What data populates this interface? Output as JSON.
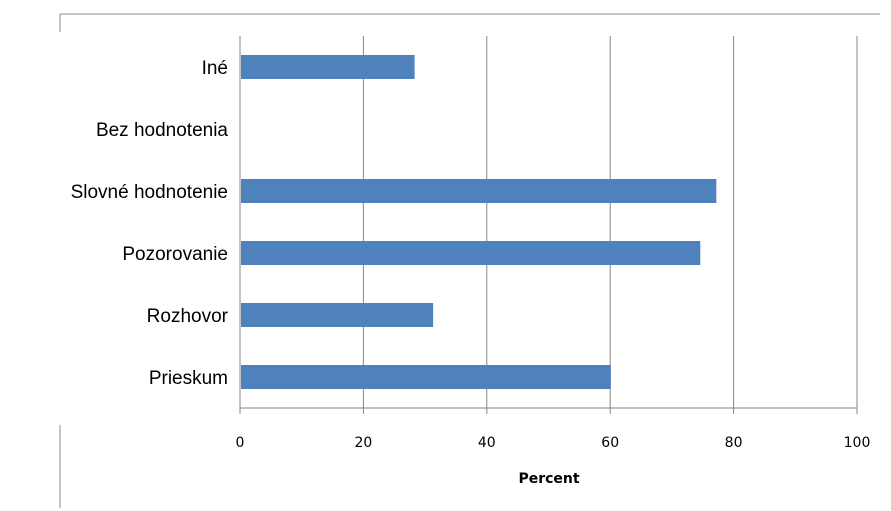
{
  "chart_data": {
    "type": "bar",
    "orientation": "horizontal",
    "categories": [
      "Iné",
      "Bez hodnotenia",
      "Slovné hodnotenie",
      "Pozorovanie",
      "Rozhovor",
      "Prieskum"
    ],
    "values": [
      28.3,
      0,
      77.2,
      74.6,
      31.3,
      60.1
    ],
    "xlabel": "Percent",
    "ylabel": "",
    "xlim": [
      0,
      100
    ],
    "xticks": [
      "0",
      "20",
      "40",
      "60",
      "80",
      "100"
    ],
    "grid": true,
    "legend": "none",
    "bar_color": "#4F81BD",
    "gridline_color": "#868686"
  }
}
